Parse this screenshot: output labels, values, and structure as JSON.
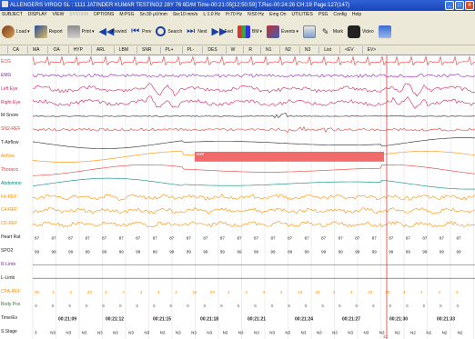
{
  "window": {
    "title": "ALLENGERS VIRGO SL  :  1111  JATINDER KUMAR TESTING2   28Y 76 6D/M    Time-00:21:05[12:50:59]    T.Rec-00:24:26    CH:19  Page:127(147)"
  },
  "menu": [
    "SUBJECT",
    "DISPLAY",
    "VIEW",
    "SYSTEM",
    "OPTIONS",
    "M:PSG",
    "Sn:30 µV/mm",
    "Sw:10 mm/s",
    "L:1.0 Hz",
    "H:70 Hz",
    "N:50 Hz",
    "Emg On",
    "UTILITIES",
    "PSG",
    "Config",
    "Help"
  ],
  "toolbar": [
    {
      "name": "load",
      "label": "Load",
      "icon": "folder-icon",
      "dropdown": true
    },
    {
      "name": "report",
      "label": "Report",
      "icon": "report-icon",
      "dropdown": false
    },
    {
      "name": "print",
      "label": "Print",
      "icon": "printer-icon",
      "dropdown": true
    },
    {
      "name": "rewind",
      "label": "Rewind",
      "icon": "rewind-icon",
      "dropdown": false
    },
    {
      "name": "prev",
      "label": "Prev",
      "icon": "prev-icon",
      "dropdown": false
    },
    {
      "name": "search",
      "label": "Search",
      "icon": "search-icon",
      "dropdown": false
    },
    {
      "name": "next",
      "label": "Next",
      "icon": "next-icon",
      "dropdown": false
    },
    {
      "name": "fwd",
      "label": "Fwd",
      "icon": "fast-forward-icon",
      "dropdown": false
    },
    {
      "name": "bm",
      "label": "BM",
      "icon": "bookmark-icon",
      "dropdown": true
    },
    {
      "name": "events",
      "label": "Events",
      "icon": "events-icon",
      "dropdown": true
    },
    {
      "name": "chart",
      "label": "",
      "icon": "chart-icon",
      "dropdown": false
    },
    {
      "name": "mark",
      "label": "Mark",
      "icon": "mark-icon",
      "dropdown": false
    },
    {
      "name": "video",
      "label": "Video",
      "icon": "video-camera-icon",
      "dropdown": false
    },
    {
      "name": "end",
      "label": "",
      "icon": "window-icon",
      "dropdown": false
    }
  ],
  "tabs": [
    "CA",
    "MA",
    "OA",
    "HYP",
    "ARL",
    "LBM",
    "SNR",
    "PL+",
    "PL-",
    "DES",
    "W",
    "R",
    "N1",
    "N2",
    "N3",
    "List",
    "<EV",
    "EV>"
  ],
  "channels": [
    {
      "name": "ECG",
      "color": "#e53935"
    },
    {
      "name": "EMG",
      "color": "#8e24aa"
    },
    {
      "name": "Left Eye",
      "color": "#d81b60"
    },
    {
      "name": "Right Eye",
      "color": "#d81b60"
    },
    {
      "name": "M-Snore",
      "color": "#222222"
    },
    {
      "name": "SN2-REF",
      "color": "#e53935"
    },
    {
      "name": "T-Airflow",
      "color": "#222222"
    },
    {
      "name": "Airflow",
      "color": "#fb8c00"
    },
    {
      "name": "Thoracic",
      "color": "#e53935"
    },
    {
      "name": "Abdomino",
      "color": "#00897b"
    },
    {
      "name": "F4-REF",
      "color": "#fb8c00"
    },
    {
      "name": "C4-REF",
      "color": "#fb8c00"
    },
    {
      "name": "O2-REF",
      "color": "#fb8c00"
    },
    {
      "name": "Heart Rat",
      "color": "#222222"
    },
    {
      "name": "SPO2",
      "color": "#222222"
    },
    {
      "name": "R-Limb",
      "color": "#8e24aa"
    },
    {
      "name": "L-Limb",
      "color": "#222222"
    },
    {
      "name": "CPA-REF",
      "color": "#fb8c00"
    },
    {
      "name": "Body Pos",
      "color": "#2e7d32"
    },
    {
      "name": "Time/Ev",
      "color": "#222222"
    },
    {
      "name": "S.Stage",
      "color": "#222222"
    }
  ],
  "event": {
    "label": "HYP",
    "color": "#f26b6b"
  },
  "heart_rate_marker": "87",
  "spo2_marker": "99",
  "cpap_values": [
    "25",
    "4",
    "4",
    "23",
    "4",
    "4",
    "4",
    "4",
    "4",
    "24",
    "23",
    "4",
    "4",
    "4",
    "4",
    "24",
    "23",
    "4",
    "4",
    "22",
    "25",
    "4",
    "4",
    "4",
    "4"
  ],
  "body_pos_marker": "S",
  "time_labels": [
    "00:21:09",
    "00:21:12",
    "00:21:15",
    "00:21:18",
    "00:21:21",
    "00:21:24",
    "00:21:27",
    "00:21:30",
    "00:21:33"
  ],
  "stages": [
    "3",
    "N3",
    "N3",
    "N3",
    "N3",
    "N3",
    "N3",
    "N3",
    "N3",
    "N3",
    "N3",
    "N3",
    "N3",
    "N3",
    "N3",
    "N3",
    "N3",
    "N3",
    "N3",
    "N3",
    "N3",
    "N3",
    "N3",
    "N2",
    "N2",
    "N2",
    "N2",
    "N2"
  ],
  "cursor_label": "42",
  "colors": {
    "grid": "#dcdcdc",
    "cursor": "#e53935",
    "accent": "#1a3ea8"
  }
}
